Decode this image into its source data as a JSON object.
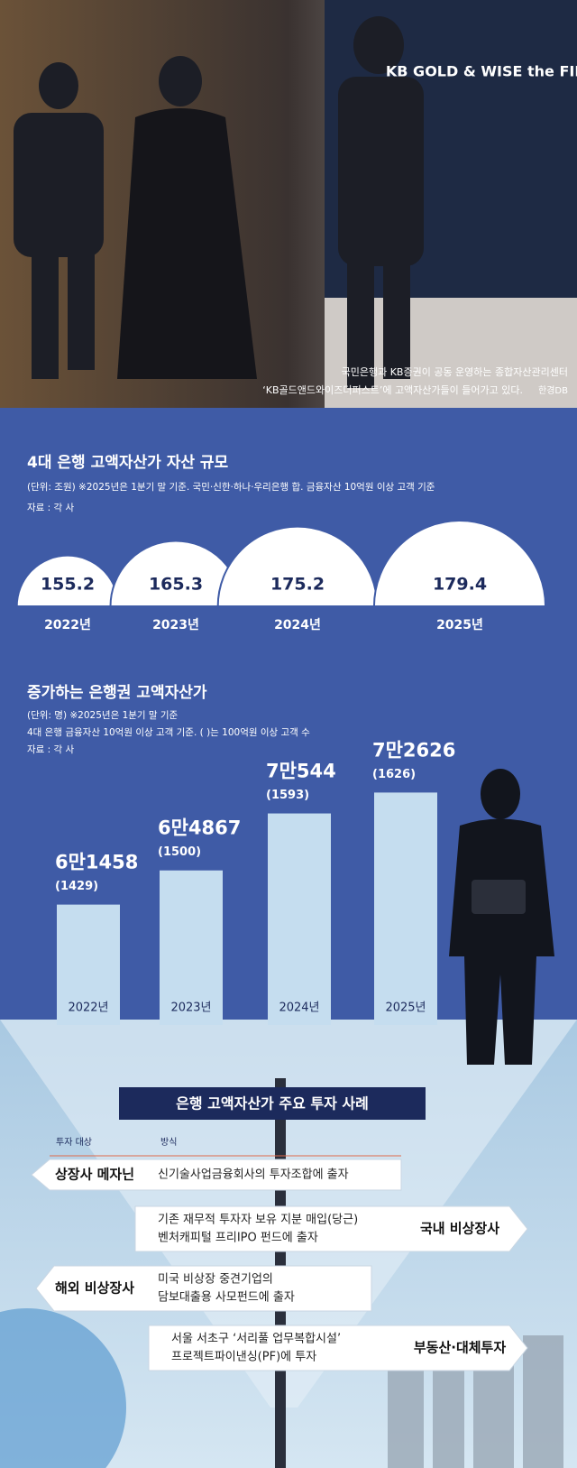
{
  "photo": {
    "sign_text": "KB GOLD & WISE the FIRST",
    "caption": [
      "국민은행과 KB증권이 공동 운영하는 종합자산관리센터",
      "‘KB골드앤드와이즈더퍼스트’에 고액자산가들이 들어가고 있다."
    ],
    "credit": "한경DB"
  },
  "chart_data": [
    {
      "type": "semicircle",
      "title": "4대 은행 고액자산가 자산 규모",
      "subtitle": "(단위: 조원)  ※2025년은 1분기 말 기준. 국민·신한·하나·우리은행 합. 금융자산 10억원 이상 고객 기준",
      "source": "자료 : 각 사",
      "categories": [
        "2022년",
        "2023년",
        "2024년",
        "2025년"
      ],
      "values": [
        155.2,
        165.3,
        175.2,
        179.4
      ],
      "color": "#ffffff"
    },
    {
      "type": "bar",
      "title": "증가하는 은행권 고액자산가",
      "subtitle": [
        "(단위: 명)  ※2025년은 1분기 말 기준",
        "4대 은행 금융자산 10억원 이상 고객 기준. ( )는 100억원 이상 고객 수"
      ],
      "source": "자료 : 각 사",
      "categories": [
        "2022년",
        "2023년",
        "2024년",
        "2025년"
      ],
      "values": [
        61458,
        64867,
        70544,
        72626
      ],
      "value_labels": [
        "6만1458",
        "6만4867",
        "7만544",
        "7만2626"
      ],
      "secondary_values": [
        1429,
        1500,
        1593,
        1626
      ],
      "secondary_value_labels": [
        "(1429)",
        "(1500)",
        "(1593)",
        "(1626)"
      ],
      "color": "#c5ddef",
      "ylim": [
        50000,
        75000
      ]
    }
  ],
  "cases": {
    "title": "은행 고액자산가 주요 투자 사례",
    "header": [
      "투자 대상",
      "방식"
    ],
    "rows": [
      {
        "target": "상장사 메자닌",
        "method": [
          "신기술사업금융회사의 투자조합에 출자"
        ]
      },
      {
        "target": "국내 비상장사",
        "method": [
          "기존 재무적 투자자 보유 지분 매입(당근)",
          "벤처캐피털 프리IPO 펀드에 출자"
        ]
      },
      {
        "target": "해외 비상장사",
        "method": [
          "미국 비상장 중견기업의",
          "담보대출용 사모펀드에 출자"
        ]
      },
      {
        "target": "부동산·대체투자",
        "method": [
          "서울 서초구 ‘서리풀 업무복합시설’",
          "프로젝트파이낸싱(PF)에 투자"
        ]
      }
    ]
  }
}
